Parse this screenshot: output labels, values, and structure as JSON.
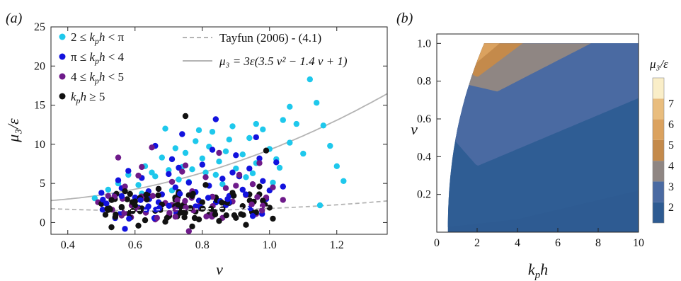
{
  "chart_data": [
    {
      "type": "scatter",
      "panel_label": "(a)",
      "xlabel": "ν",
      "ylabel": "μ₃/ε",
      "xlim": [
        0.35,
        1.35
      ],
      "ylim": [
        -1.5,
        25
      ],
      "xticks": [
        0.4,
        0.6,
        0.8,
        1.0,
        1.2
      ],
      "xtick_labels": [
        "0.4",
        "0.6",
        "0.8",
        "1.0",
        "1.2"
      ],
      "yticks": [
        0,
        5,
        10,
        15,
        20,
        25
      ],
      "ytick_labels": [
        "0",
        "5",
        "10",
        "15",
        "20",
        "25"
      ],
      "grid": false,
      "legend_position": "top-left",
      "colors": {
        "series1": "#1ec8ec",
        "series2": "#1212de",
        "series3": "#6e1a8a",
        "series4": "#111111",
        "tayfun": "#b4b4b4",
        "fit": "#b4b4b4"
      },
      "series": [
        {
          "name": "2 ≤ kₚh < π",
          "legend_text": "2 ≤ ",
          "legend_math": "k",
          "legend_sub": "p",
          "legend_math2": "h",
          "legend_tail": " < π",
          "points": [
            [
              0.48,
              3.1
            ],
            [
              0.52,
              4.2
            ],
            [
              0.55,
              5.0
            ],
            [
              0.58,
              6.1
            ],
            [
              0.61,
              4.8
            ],
            [
              0.63,
              7.2
            ],
            [
              0.66,
              5.9
            ],
            [
              0.68,
              8.3
            ],
            [
              0.7,
              6.7
            ],
            [
              0.72,
              9.5
            ],
            [
              0.74,
              7.1
            ],
            [
              0.76,
              5.2
            ],
            [
              0.78,
              10.4
            ],
            [
              0.8,
              8.2
            ],
            [
              0.81,
              6.4
            ],
            [
              0.83,
              11.6
            ],
            [
              0.85,
              7.8
            ],
            [
              0.87,
              9.1
            ],
            [
              0.89,
              12.3
            ],
            [
              0.9,
              6.9
            ],
            [
              0.92,
              8.7
            ],
            [
              0.94,
              10.8
            ],
            [
              0.96,
              7.6
            ],
            [
              0.98,
              11.9
            ],
            [
              1.0,
              9.4
            ],
            [
              1.02,
              8.1
            ],
            [
              1.04,
              13.1
            ],
            [
              1.06,
              10.2
            ],
            [
              1.08,
              12.6
            ],
            [
              1.1,
              8.8
            ],
            [
              1.12,
              18.3
            ],
            [
              1.14,
              15.3
            ],
            [
              1.16,
              12.4
            ],
            [
              1.18,
              9.8
            ],
            [
              1.2,
              7.2
            ],
            [
              1.22,
              5.3
            ],
            [
              1.15,
              2.2
            ],
            [
              0.69,
              12.0
            ],
            [
              0.79,
              11.8
            ],
            [
              0.88,
              10.6
            ],
            [
              0.96,
              12.6
            ],
            [
              1.06,
              14.8
            ],
            [
              0.65,
              6.4
            ],
            [
              0.73,
              5.5
            ],
            [
              0.84,
              6.1
            ],
            [
              0.93,
              5.8
            ],
            [
              1.01,
              5.1
            ],
            [
              0.57,
              4.6
            ],
            [
              0.62,
              3.7
            ],
            [
              0.71,
              4.1
            ],
            [
              0.77,
              6.8
            ],
            [
              0.86,
              4.9
            ],
            [
              0.95,
              6.3
            ],
            [
              1.03,
              7.0
            ],
            [
              0.75,
              8.9
            ],
            [
              0.82,
              9.7
            ]
          ]
        },
        {
          "name": "π ≤ kₚh < 4",
          "legend_text": "π ≤ ",
          "legend_math": "k",
          "legend_sub": "p",
          "legend_math2": "h",
          "legend_tail": " < 4",
          "points": [
            [
              0.5,
              3.8
            ],
            [
              0.53,
              2.9
            ],
            [
              0.56,
              4.4
            ],
            [
              0.58,
              6.6
            ],
            [
              0.6,
              3.2
            ],
            [
              0.62,
              5.7
            ],
            [
              0.64,
              4.0
            ],
            [
              0.66,
              9.8
            ],
            [
              0.68,
              3.6
            ],
            [
              0.7,
              6.2
            ],
            [
              0.72,
              4.5
            ],
            [
              0.74,
              11.3
            ],
            [
              0.76,
              5.1
            ],
            [
              0.78,
              3.9
            ],
            [
              0.8,
              7.4
            ],
            [
              0.82,
              4.7
            ],
            [
              0.84,
              13.2
            ],
            [
              0.86,
              5.6
            ],
            [
              0.88,
              3.4
            ],
            [
              0.9,
              8.6
            ],
            [
              0.92,
              4.2
            ],
            [
              0.94,
              6.9
            ],
            [
              0.96,
              10.9
            ],
            [
              0.98,
              5.3
            ],
            [
              1.0,
              4.1
            ],
            [
              1.02,
              7.7
            ],
            [
              1.04,
              4.6
            ],
            [
              0.57,
              -0.8
            ],
            [
              0.61,
              1.9
            ],
            [
              0.67,
              2.6
            ],
            [
              0.79,
              2.8
            ],
            [
              0.87,
              2.2
            ],
            [
              0.99,
              3.0
            ],
            [
              0.71,
              8.1
            ],
            [
              0.83,
              9.3
            ],
            [
              0.91,
              5.9
            ],
            [
              0.97,
              8.2
            ],
            [
              0.55,
              5.4
            ],
            [
              0.73,
              7.0
            ],
            [
              0.89,
              6.4
            ]
          ]
        },
        {
          "name": "4 ≤ kₚh < 5",
          "legend_text": "4 ≤ ",
          "legend_math": "k",
          "legend_sub": "p",
          "legend_math2": "h",
          "legend_tail": " < 5",
          "points": [
            [
              0.49,
              2.6
            ],
            [
              0.52,
              3.4
            ],
            [
              0.55,
              8.3
            ],
            [
              0.57,
              4.6
            ],
            [
              0.59,
              2.2
            ],
            [
              0.61,
              6.0
            ],
            [
              0.63,
              3.1
            ],
            [
              0.65,
              9.6
            ],
            [
              0.67,
              4.3
            ],
            [
              0.69,
              2.5
            ],
            [
              0.71,
              5.2
            ],
            [
              0.73,
              3.7
            ],
            [
              0.75,
              7.3
            ],
            [
              0.77,
              4.0
            ],
            [
              0.79,
              2.1
            ],
            [
              0.81,
              5.8
            ],
            [
              0.83,
              3.3
            ],
            [
              0.85,
              8.9
            ],
            [
              0.87,
              4.4
            ],
            [
              0.89,
              2.7
            ],
            [
              0.91,
              6.1
            ],
            [
              0.93,
              3.5
            ],
            [
              0.95,
              4.9
            ],
            [
              0.97,
              7.6
            ],
            [
              0.99,
              3.2
            ],
            [
              1.01,
              4.5
            ],
            [
              0.56,
              0.9
            ],
            [
              0.66,
              0.4
            ],
            [
              0.76,
              -1.1
            ],
            [
              0.86,
              0.6
            ],
            [
              0.96,
              1.1
            ],
            [
              0.62,
              7.1
            ],
            [
              0.74,
              6.5
            ],
            [
              0.9,
              4.7
            ],
            [
              1.04,
              2.9
            ]
          ]
        },
        {
          "name": "kₚh ≥ 5",
          "legend_text": "",
          "legend_math": "k",
          "legend_sub": "p",
          "legend_math2": "h",
          "legend_tail": " ≥ 5",
          "points": [
            [
              0.5,
              2.4
            ],
            [
              0.52,
              1.6
            ],
            [
              0.54,
              3.0
            ],
            [
              0.56,
              2.0
            ],
            [
              0.58,
              1.2
            ],
            [
              0.6,
              2.7
            ],
            [
              0.62,
              1.8
            ],
            [
              0.64,
              3.4
            ],
            [
              0.66,
              1.5
            ],
            [
              0.68,
              2.3
            ],
            [
              0.7,
              0.8
            ],
            [
              0.72,
              2.9
            ],
            [
              0.74,
              1.9
            ],
            [
              0.75,
              13.6
            ],
            [
              0.76,
              3.5
            ],
            [
              0.78,
              1.4
            ],
            [
              0.8,
              2.6
            ],
            [
              0.82,
              1.0
            ],
            [
              0.84,
              3.2
            ],
            [
              0.86,
              1.7
            ],
            [
              0.88,
              2.5
            ],
            [
              0.9,
              0.6
            ],
            [
              0.92,
              2.1
            ],
            [
              0.94,
              3.6
            ],
            [
              0.96,
              1.3
            ],
            [
              0.98,
              2.8
            ],
            [
              1.0,
              1.9
            ],
            [
              0.53,
              -0.6
            ],
            [
              0.61,
              -0.4
            ],
            [
              0.69,
              0.1
            ],
            [
              0.77,
              -0.5
            ],
            [
              0.85,
              0.2
            ],
            [
              0.93,
              -0.3
            ],
            [
              1.01,
              0.5
            ],
            [
              0.57,
              4.0
            ],
            [
              0.67,
              4.3
            ],
            [
              0.73,
              3.9
            ],
            [
              0.81,
              4.8
            ],
            [
              0.89,
              3.8
            ],
            [
              0.97,
              4.6
            ],
            [
              0.63,
              0.3
            ],
            [
              0.79,
              0.4
            ],
            [
              0.99,
              9.2
            ]
          ]
        }
      ],
      "curves": [
        {
          "name": "Tayfun (2006) - (4.1)",
          "style": "dashed",
          "legend_text": "Tayfun (2006) - (4.1)"
        },
        {
          "name": "μ₃ = 3ε(3.5 ν² − 1.4 ν + 1)",
          "style": "solid",
          "legend_text": "μ₃ = 3ε(3.5 ν² − 1.4 ν + 1)"
        }
      ],
      "binned_fit": {
        "x": [
          0.55,
          0.65,
          0.75,
          0.85,
          0.95,
          1.0
        ],
        "y": [
          1.5,
          1.6,
          1.7,
          1.8,
          1.9,
          2.0
        ]
      }
    },
    {
      "type": "contour",
      "panel_label": "(b)",
      "xlabel": "kₚh",
      "ylabel": "ν",
      "xlim": [
        0,
        10
      ],
      "ylim": [
        0,
        1.05
      ],
      "xticks": [
        0,
        2,
        4,
        6,
        8,
        10
      ],
      "xtick_labels": [
        "0",
        "2",
        "4",
        "6",
        "8",
        "10"
      ],
      "yticks": [
        0.2,
        0.4,
        0.6,
        0.8,
        1.0
      ],
      "ytick_labels": [
        "0.2",
        "0.4",
        "0.6",
        "0.8",
        "1.0"
      ],
      "colorbar_title": "μ₃/ε",
      "colorbar_levels": [
        2,
        3,
        4,
        5,
        6,
        7
      ],
      "colorbar_labels": [
        "2",
        "3",
        "4",
        "5",
        "6",
        "7"
      ],
      "level_colors": [
        "#2e5b92",
        "#4a6aa2",
        "#5a74aa",
        "#8f8683",
        "#c48a4b",
        "#dba25f",
        "#e9bd7e",
        "#f4d8a3",
        "#faeec8"
      ]
    }
  ]
}
